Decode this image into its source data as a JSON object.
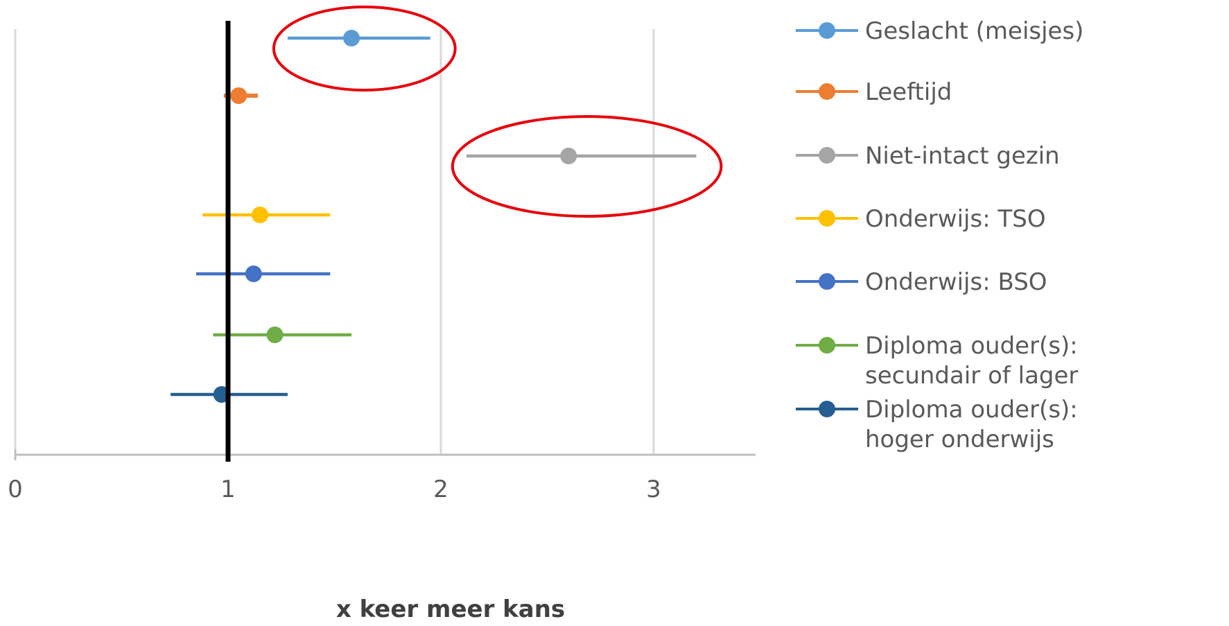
{
  "chart_data": {
    "type": "scatter",
    "title": "",
    "xlabel": "x keer meer kans",
    "ylabel": "",
    "xlim": [
      0,
      3.5
    ],
    "xticks": [
      0,
      1,
      2,
      3
    ],
    "grid": true,
    "legend_position": "right",
    "reference_line_x": 1,
    "series": [
      {
        "name": "Geslacht (meisjes)",
        "estimate": 1.58,
        "lower": 1.28,
        "upper": 1.95,
        "color": "#5B9BD5",
        "highlighted": true
      },
      {
        "name": "Leeftijd",
        "estimate": 1.05,
        "lower": 0.98,
        "upper": 1.14,
        "color": "#ED7D31",
        "highlighted": false
      },
      {
        "name": "Niet-intact gezin",
        "estimate": 2.6,
        "lower": 2.12,
        "upper": 3.2,
        "color": "#A5A5A5",
        "highlighted": true
      },
      {
        "name": "Onderwijs: TSO",
        "estimate": 1.15,
        "lower": 0.88,
        "upper": 1.48,
        "color": "#FFC000",
        "highlighted": false
      },
      {
        "name": "Onderwijs: BSO",
        "estimate": 1.12,
        "lower": 0.85,
        "upper": 1.48,
        "color": "#4472C4",
        "highlighted": false
      },
      {
        "name": "Diploma ouder(s): secundair of lager",
        "estimate": 1.22,
        "lower": 0.93,
        "upper": 1.58,
        "color": "#70AD47",
        "highlighted": false
      },
      {
        "name": "Diploma ouder(s): hoger onderwijs",
        "estimate": 0.97,
        "lower": 0.73,
        "upper": 1.28,
        "color": "#255E91",
        "highlighted": false
      }
    ],
    "legend_lines": [
      [
        "Geslacht (meisjes)"
      ],
      [
        "Leeftijd"
      ],
      [
        "Niet-intact gezin"
      ],
      [
        "Onderwijs: TSO"
      ],
      [
        "Onderwijs: BSO"
      ],
      [
        "Diploma ouder(s):",
        "secundair of lager"
      ],
      [
        "Diploma ouder(s):",
        "hoger onderwijs"
      ]
    ],
    "highlight_color": "#E8000B",
    "reference_line_color": "#000000"
  }
}
